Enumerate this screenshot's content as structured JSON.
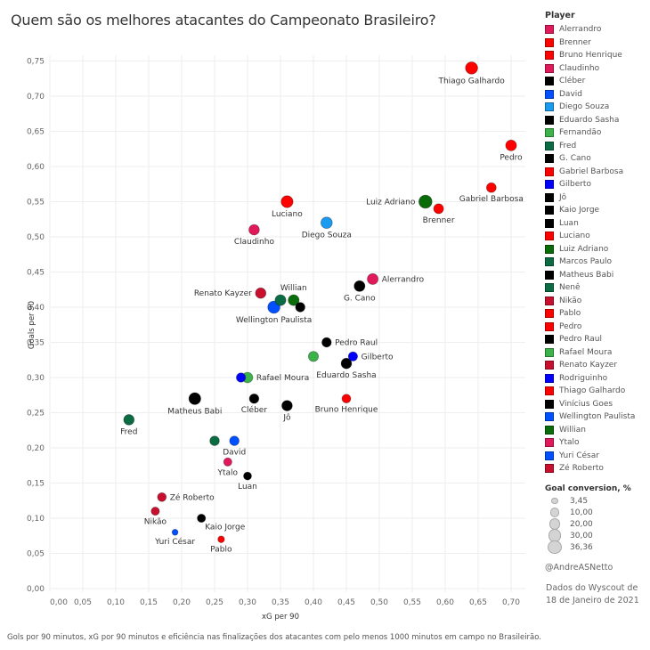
{
  "title": "Quem são os melhores atacantes do Campeonato Brasileiro?",
  "footnote": "Gols por 90 minutos, xG por 90 minutos e eficiência nas finalizações dos atacantes com pelo menos 1000 minutos em campo no Brasileirão.",
  "credit": "@AndreASNetto",
  "source": "Dados do Wyscout de 18 de Janeiro de 2021",
  "legend": {
    "title": "Player",
    "items": [
      {
        "label": "Alerrandro",
        "color": "#e0195a"
      },
      {
        "label": "Brenner",
        "color": "#ff0000"
      },
      {
        "label": "Bruno Henrique",
        "color": "#ff0000"
      },
      {
        "label": "Claudinho",
        "color": "#e0195a"
      },
      {
        "label": "Cléber",
        "color": "#000000"
      },
      {
        "label": "David",
        "color": "#0050ff"
      },
      {
        "label": "Diego Souza",
        "color": "#1a9bf0"
      },
      {
        "label": "Eduardo Sasha",
        "color": "#000000"
      },
      {
        "label": "Fernandão",
        "color": "#3cb34a"
      },
      {
        "label": "Fred",
        "color": "#0b6b43"
      },
      {
        "label": "G. Cano",
        "color": "#000000"
      },
      {
        "label": "Gabriel Barbosa",
        "color": "#ff0000"
      },
      {
        "label": "Gilberto",
        "color": "#0000ff"
      },
      {
        "label": "Jô",
        "color": "#000000"
      },
      {
        "label": "Kaio Jorge",
        "color": "#000000"
      },
      {
        "label": "Luan",
        "color": "#000000"
      },
      {
        "label": "Luciano",
        "color": "#ff0000"
      },
      {
        "label": "Luiz Adriano",
        "color": "#0a6b0a"
      },
      {
        "label": "Marcos Paulo",
        "color": "#0b6b43"
      },
      {
        "label": "Matheus Babi",
        "color": "#000000"
      },
      {
        "label": "Nenê",
        "color": "#0b6b43"
      },
      {
        "label": "Nikão",
        "color": "#c8102e"
      },
      {
        "label": "Pablo",
        "color": "#ff0000"
      },
      {
        "label": "Pedro",
        "color": "#ff0000"
      },
      {
        "label": "Pedro Raul",
        "color": "#000000"
      },
      {
        "label": "Rafael Moura",
        "color": "#3cb34a"
      },
      {
        "label": "Renato Kayzer",
        "color": "#c8102e"
      },
      {
        "label": "Rodriguinho",
        "color": "#0000ff"
      },
      {
        "label": "Thiago Galhardo",
        "color": "#ff0000"
      },
      {
        "label": "Vinícius Goes",
        "color": "#000000"
      },
      {
        "label": "Wellington Paulista",
        "color": "#0050ff"
      },
      {
        "label": "Willian",
        "color": "#0a6b0a"
      },
      {
        "label": "Ytalo",
        "color": "#e0195a"
      },
      {
        "label": "Yuri César",
        "color": "#0050ff"
      },
      {
        "label": "Zé Roberto",
        "color": "#c8102e"
      }
    ]
  },
  "size_legend": {
    "title": "Goal conversion, %",
    "items": [
      {
        "label": "3,45",
        "value": 3.45
      },
      {
        "label": "10,00",
        "value": 10
      },
      {
        "label": "20,00",
        "value": 20
      },
      {
        "label": "30,00",
        "value": 30
      },
      {
        "label": "36,36",
        "value": 36.36
      }
    ]
  },
  "chart_data": {
    "type": "scatter",
    "title": "Quem são os melhores atacantes do Campeonato Brasileiro?",
    "xlabel": "xG per 90",
    "ylabel": "Goals per 90",
    "xlim": [
      0,
      0.72
    ],
    "ylim": [
      0,
      0.76
    ],
    "xticks": [
      0,
      0.05,
      0.1,
      0.15,
      0.2,
      0.25,
      0.3,
      0.35,
      0.4,
      0.45,
      0.5,
      0.55,
      0.6,
      0.65,
      0.7
    ],
    "xtick_labels": [
      "0,00",
      "0,05",
      "0,10",
      "0,15",
      "0,20",
      "0,25",
      "0,30",
      "0,35",
      "0,40",
      "0,45",
      "0,50",
      "0,55",
      "0,60",
      "0,65",
      "0,70"
    ],
    "yticks": [
      0,
      0.05,
      0.1,
      0.15,
      0.2,
      0.25,
      0.3,
      0.35,
      0.4,
      0.45,
      0.5,
      0.55,
      0.6,
      0.65,
      0.7,
      0.75
    ],
    "ytick_labels": [
      "0,00",
      "0,05",
      "0,10",
      "0,15",
      "0,20",
      "0,25",
      "0,30",
      "0,35",
      "0,40",
      "0,45",
      "0,50",
      "0,55",
      "0,60",
      "0,65",
      "0,70",
      "0,75"
    ],
    "grid": true,
    "legend_position": "right",
    "size_variable": "Goal conversion, %",
    "points": [
      {
        "name": "Thiago Galhardo",
        "x": 0.64,
        "y": 0.74,
        "conv": 30,
        "color": "#ff0000",
        "label": true,
        "lpos": "below"
      },
      {
        "name": "Pedro",
        "x": 0.7,
        "y": 0.63,
        "conv": 22,
        "color": "#ff0000",
        "label": true,
        "lpos": "below"
      },
      {
        "name": "Gabriel Barbosa",
        "x": 0.67,
        "y": 0.57,
        "conv": 16,
        "color": "#ff0000",
        "label": true,
        "lpos": "below"
      },
      {
        "name": "Luiz Adriano",
        "x": 0.57,
        "y": 0.55,
        "conv": 36.36,
        "color": "#0a6b0a",
        "label": true,
        "lpos": "left"
      },
      {
        "name": "Brenner",
        "x": 0.59,
        "y": 0.54,
        "conv": 17,
        "color": "#ff0000",
        "label": true,
        "lpos": "below"
      },
      {
        "name": "Luciano",
        "x": 0.36,
        "y": 0.55,
        "conv": 28,
        "color": "#ff0000",
        "label": true,
        "lpos": "below"
      },
      {
        "name": "Claudinho",
        "x": 0.31,
        "y": 0.51,
        "conv": 20,
        "color": "#e0195a",
        "label": true,
        "lpos": "below"
      },
      {
        "name": "Diego Souza",
        "x": 0.42,
        "y": 0.52,
        "conv": 25,
        "color": "#1a9bf0",
        "label": true,
        "lpos": "below"
      },
      {
        "name": "Alerrandro",
        "x": 0.49,
        "y": 0.44,
        "conv": 22,
        "color": "#e0195a",
        "label": true,
        "lpos": "right"
      },
      {
        "name": "G. Cano",
        "x": 0.47,
        "y": 0.43,
        "conv": 22,
        "color": "#000000",
        "label": true,
        "lpos": "below"
      },
      {
        "name": "Renato Kayzer",
        "x": 0.32,
        "y": 0.42,
        "conv": 20,
        "color": "#c8102e",
        "label": true,
        "lpos": "left"
      },
      {
        "name": "Willian",
        "x": 0.37,
        "y": 0.41,
        "conv": 22,
        "color": "#0a6b0a",
        "label": true,
        "lpos": "above"
      },
      {
        "name": "Marcos Paulo",
        "x": 0.35,
        "y": 0.41,
        "conv": 22,
        "color": "#0b6b43",
        "label": false,
        "lpos": "none"
      },
      {
        "name": "Vinícius Goes",
        "x": 0.38,
        "y": 0.4,
        "conv": 15,
        "color": "#000000",
        "label": false,
        "lpos": "none"
      },
      {
        "name": "Wellington Paulista",
        "x": 0.34,
        "y": 0.4,
        "conv": 30,
        "color": "#0050ff",
        "label": true,
        "lpos": "below"
      },
      {
        "name": "Pedro Raul",
        "x": 0.42,
        "y": 0.35,
        "conv": 15,
        "color": "#000000",
        "label": true,
        "lpos": "right"
      },
      {
        "name": "Fernandão",
        "x": 0.4,
        "y": 0.33,
        "conv": 18,
        "color": "#3cb34a",
        "label": false,
        "lpos": "none"
      },
      {
        "name": "Gilberto",
        "x": 0.46,
        "y": 0.33,
        "conv": 14,
        "color": "#0000ff",
        "label": true,
        "lpos": "right"
      },
      {
        "name": "Eduardo Sasha",
        "x": 0.45,
        "y": 0.32,
        "conv": 20,
        "color": "#000000",
        "label": true,
        "lpos": "below"
      },
      {
        "name": "Rodriguinho",
        "x": 0.29,
        "y": 0.3,
        "conv": 14,
        "color": "#0000ff",
        "label": false,
        "lpos": "none"
      },
      {
        "name": "Rafael Moura",
        "x": 0.3,
        "y": 0.3,
        "conv": 20,
        "color": "#3cb34a",
        "label": true,
        "lpos": "right"
      },
      {
        "name": "Matheus Babi",
        "x": 0.22,
        "y": 0.27,
        "conv": 28,
        "color": "#000000",
        "label": true,
        "lpos": "below"
      },
      {
        "name": "Cléber",
        "x": 0.31,
        "y": 0.27,
        "conv": 15,
        "color": "#000000",
        "label": true,
        "lpos": "below"
      },
      {
        "name": "Jô",
        "x": 0.36,
        "y": 0.26,
        "conv": 20,
        "color": "#000000",
        "label": true,
        "lpos": "below"
      },
      {
        "name": "Bruno Henrique",
        "x": 0.45,
        "y": 0.27,
        "conv": 12,
        "color": "#ff0000",
        "label": true,
        "lpos": "below"
      },
      {
        "name": "Fred",
        "x": 0.12,
        "y": 0.24,
        "conv": 20,
        "color": "#0b6b43",
        "label": true,
        "lpos": "below"
      },
      {
        "name": "Nenê",
        "x": 0.25,
        "y": 0.21,
        "conv": 15,
        "color": "#0b6b43",
        "label": false,
        "lpos": "none"
      },
      {
        "name": "David",
        "x": 0.28,
        "y": 0.21,
        "conv": 15,
        "color": "#0050ff",
        "label": true,
        "lpos": "below"
      },
      {
        "name": "Ytalo",
        "x": 0.27,
        "y": 0.18,
        "conv": 10,
        "color": "#e0195a",
        "label": true,
        "lpos": "below"
      },
      {
        "name": "Luan",
        "x": 0.3,
        "y": 0.16,
        "conv": 9,
        "color": "#000000",
        "label": true,
        "lpos": "below"
      },
      {
        "name": "Zé Roberto",
        "x": 0.17,
        "y": 0.13,
        "conv": 12,
        "color": "#c8102e",
        "label": true,
        "lpos": "right"
      },
      {
        "name": "Nikão",
        "x": 0.16,
        "y": 0.11,
        "conv": 10,
        "color": "#c8102e",
        "label": true,
        "lpos": "below"
      },
      {
        "name": "Kaio Jorge",
        "x": 0.23,
        "y": 0.1,
        "conv": 10,
        "color": "#000000",
        "label": true,
        "lpos": "belowright"
      },
      {
        "name": "Yuri César",
        "x": 0.19,
        "y": 0.08,
        "conv": 3.45,
        "color": "#0050ff",
        "label": true,
        "lpos": "below"
      },
      {
        "name": "Pablo",
        "x": 0.26,
        "y": 0.07,
        "conv": 5,
        "color": "#ff0000",
        "label": true,
        "lpos": "below"
      }
    ]
  }
}
